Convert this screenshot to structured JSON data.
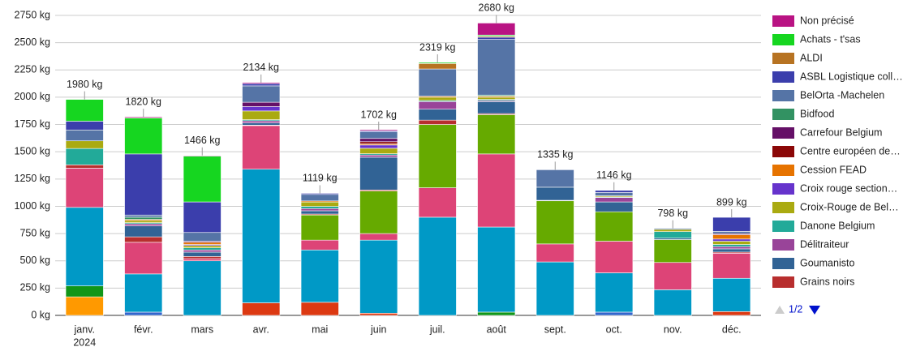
{
  "chart_data": {
    "type": "stacked_bar",
    "categories": [
      "janv.",
      "févr.",
      "mars",
      "avr.",
      "mai",
      "juin",
      "juil.",
      "août",
      "sept.",
      "oct.",
      "nov.",
      "déc."
    ],
    "first_category_year": "2024",
    "ylim": [
      0,
      2750
    ],
    "yticks": [
      {
        "value": 0,
        "label": "0 kg"
      },
      {
        "value": 250,
        "label": "250 kg"
      },
      {
        "value": 500,
        "label": "500 kg"
      },
      {
        "value": 750,
        "label": "750 kg"
      },
      {
        "value": 1000,
        "label": "1000 kg"
      },
      {
        "value": 1250,
        "label": "1250 kg"
      },
      {
        "value": 1500,
        "label": "1500 kg"
      },
      {
        "value": 1750,
        "label": "1750 kg"
      },
      {
        "value": 2000,
        "label": "2000 kg"
      },
      {
        "value": 2250,
        "label": "2250 kg"
      },
      {
        "value": 2500,
        "label": "2500 kg"
      },
      {
        "value": 2750,
        "label": "2750 kg"
      }
    ],
    "grid": true,
    "totals": {
      "values": [
        1980,
        1820,
        1466,
        2134,
        1119,
        1702,
        2319,
        2680,
        1335,
        1146,
        798,
        899
      ],
      "value_labels": [
        "1980 kg",
        "1820 kg",
        "1466 kg",
        "2134 kg",
        "1119 kg",
        "1702 kg",
        "2319 kg",
        "2680 kg",
        "1335 kg",
        "1146 kg",
        "798 kg",
        "899 kg"
      ]
    },
    "series": [
      {
        "color": "#dc3912",
        "values": [
          0,
          0,
          0,
          115,
          120,
          20,
          0,
          0,
          0,
          0,
          0,
          35
        ]
      },
      {
        "color": "#ff9900",
        "values": [
          170,
          0,
          0,
          0,
          0,
          0,
          0,
          0,
          0,
          0,
          0,
          0
        ]
      },
      {
        "color": "#109618",
        "values": [
          100,
          0,
          0,
          0,
          0,
          0,
          0,
          30,
          0,
          0,
          0,
          0
        ]
      },
      {
        "color": "#3366cc",
        "values": [
          0,
          30,
          0,
          0,
          0,
          0,
          0,
          0,
          0,
          30,
          0,
          0
        ]
      },
      {
        "color": "#0099c6",
        "values": [
          720,
          350,
          500,
          1225,
          480,
          670,
          900,
          780,
          490,
          360,
          235,
          305
        ]
      },
      {
        "color": "#dd4477",
        "values": [
          360,
          290,
          20,
          400,
          90,
          60,
          270,
          670,
          165,
          290,
          250,
          230
        ]
      },
      {
        "color": "#66aa00",
        "values": [
          0,
          0,
          0,
          0,
          230,
          390,
          580,
          360,
          395,
          270,
          210,
          0
        ]
      },
      {
        "name": "Grains noirs",
        "color": "#b82e2e",
        "values": [
          30,
          50,
          20,
          4,
          9,
          10,
          40,
          10,
          5,
          0,
          0,
          10
        ]
      },
      {
        "name": "Goumanisto",
        "color": "#316395",
        "values": [
          0,
          100,
          40,
          20,
          30,
          300,
          100,
          110,
          120,
          90,
          13,
          30
        ]
      },
      {
        "name": "Délitraiteur",
        "color": "#994499",
        "values": [
          0,
          20,
          20,
          20,
          20,
          20,
          70,
          10,
          0,
          40,
          0,
          20
        ]
      },
      {
        "name": "Danone Belgium",
        "color": "#22aa99",
        "values": [
          150,
          10,
          20,
          10,
          20,
          12,
          10,
          10,
          0,
          6,
          60,
          20
        ]
      },
      {
        "name": "Croix-Rouge de Bel…",
        "color": "#aaaa11",
        "values": [
          70,
          20,
          20,
          80,
          40,
          50,
          30,
          20,
          0,
          10,
          20,
          30
        ]
      },
      {
        "name": "Croix rouge section…",
        "color": "#6633cc",
        "values": [
          0,
          0,
          10,
          40,
          0,
          30,
          0,
          0,
          0,
          0,
          0,
          20
        ]
      },
      {
        "name": "Cession FEAD",
        "color": "#e67300",
        "values": [
          0,
          10,
          20,
          0,
          10,
          10,
          9,
          10,
          0,
          0,
          0,
          40
        ]
      },
      {
        "name": "Centre européen de…",
        "color": "#8b0707",
        "values": [
          0,
          0,
          0,
          0,
          0,
          20,
          0,
          0,
          0,
          0,
          0,
          0
        ]
      },
      {
        "name": "Carrefour Belgium",
        "color": "#651067",
        "values": [
          0,
          0,
          10,
          40,
          0,
          30,
          0,
          0,
          0,
          0,
          0,
          10
        ]
      },
      {
        "name": "Bidfood",
        "color": "#329262",
        "values": [
          0,
          20,
          0,
          0,
          0,
          0,
          0,
          10,
          0,
          0,
          0,
          0
        ]
      },
      {
        "name": "BelOrta -Machelen",
        "color": "#5574a6",
        "values": [
          100,
          20,
          80,
          150,
          60,
          60,
          250,
          510,
          160,
          30,
          10,
          20
        ]
      },
      {
        "name": "ASBL Logistique coll…",
        "color": "#3b3eac",
        "values": [
          80,
          560,
          280,
          20,
          10,
          10,
          0,
          20,
          0,
          20,
          0,
          129
        ]
      },
      {
        "name": "ALDI",
        "color": "#b77322",
        "values": [
          0,
          0,
          0,
          0,
          0,
          0,
          50,
          10,
          0,
          0,
          0,
          0
        ]
      },
      {
        "name": "Achats - t'sas",
        "color": "#16d620",
        "values": [
          200,
          330,
          420,
          0,
          0,
          0,
          10,
          10,
          0,
          0,
          0,
          0
        ]
      },
      {
        "name": "Non précisé",
        "color": "#b91383",
        "values": [
          0,
          10,
          6,
          10,
          0,
          10,
          0,
          110,
          0,
          0,
          0,
          0
        ]
      }
    ],
    "legend_page": "1/2"
  }
}
